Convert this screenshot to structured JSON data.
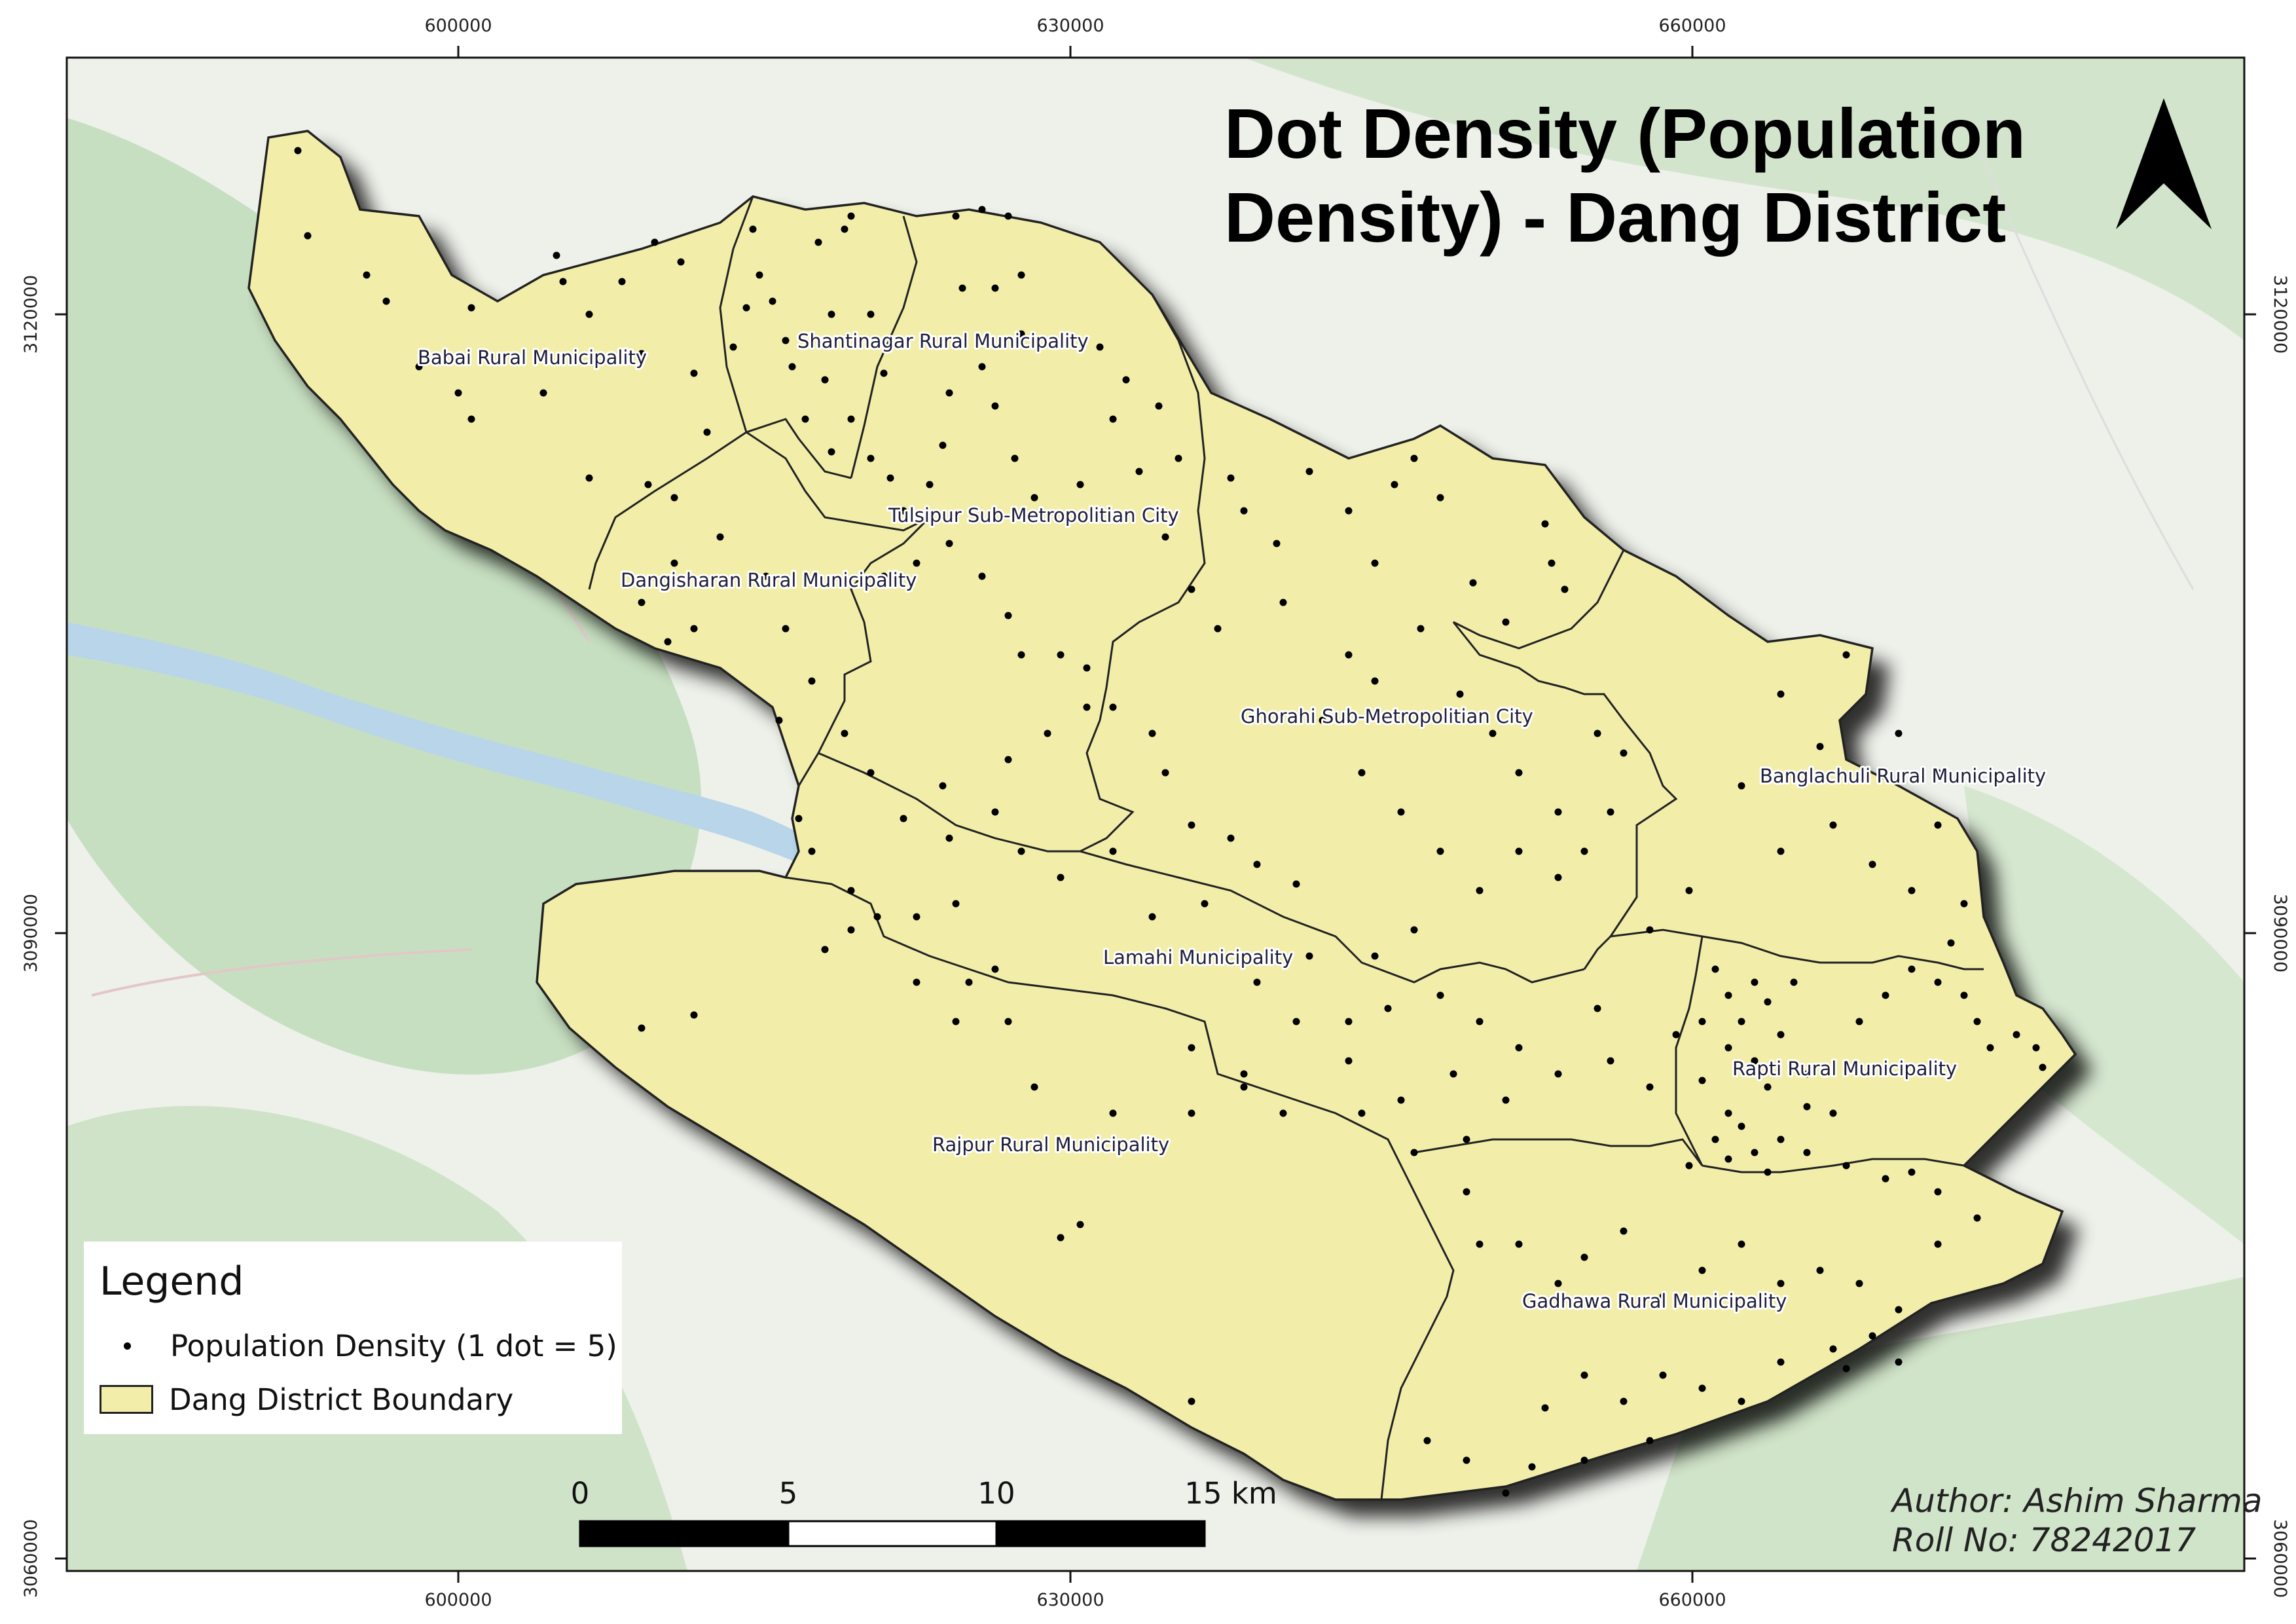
{
  "title_line1": "Dot Density (Population",
  "title_line2": "Density) - Dang District",
  "x_ticks": [
    "600000",
    "630000",
    "660000"
  ],
  "y_ticks": [
    "3120000",
    "3090000",
    "3060000"
  ],
  "municipalities": [
    "Babai Rural Municipality",
    "Shantinagar Rural Municipality",
    "Tulsipur Sub-Metropolitian City",
    "Dangisharan Rural Municipality",
    "Ghorahi Sub-Metropolitian City",
    "Banglachuli Rural Municipality",
    "Lamahi Municipality",
    "Rapti Rural Municipality",
    "Rajpur Rural Municipality",
    "Gadhawa Rural Municipality"
  ],
  "legend": {
    "title": "Legend",
    "items": [
      {
        "symbol": "dot",
        "label": "Population Density (1 dot = 5)"
      },
      {
        "symbol": "polygon",
        "label": "Dang District Boundary"
      }
    ]
  },
  "scale_bar": {
    "labels": [
      "0",
      "5",
      "10",
      "15 km"
    ]
  },
  "author": {
    "line1": "Author: Ashim Sharma",
    "line2": "Roll No: 78242017"
  },
  "colors": {
    "district_fill": "#f2eeaa",
    "boundary": "#222222",
    "basemap_bg": "#eef0ea",
    "forest": "#c7dfc1",
    "river": "#b8d5ea",
    "dot": "#000000"
  },
  "north_arrow": "north-arrow-icon"
}
